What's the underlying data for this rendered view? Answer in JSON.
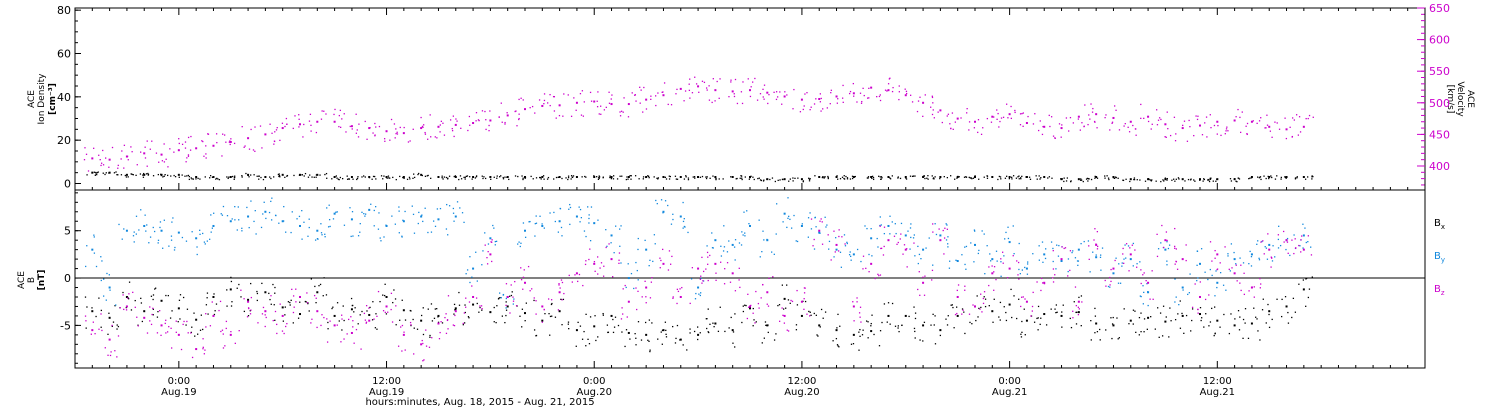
{
  "chart_data": [
    {
      "type": "scatter",
      "panel": "top",
      "ylabel": [
        "ACE",
        "Ion Density",
        "[cm⁻³]"
      ],
      "ylabel_right": [
        "ACE",
        "Velocity",
        "[km/s]"
      ],
      "ylim": [
        -3,
        81
      ],
      "y2lim": [
        362,
        650
      ],
      "yticks": [
        0,
        20,
        40,
        60,
        80
      ],
      "y2ticks": [
        400,
        450,
        500,
        550,
        600,
        650
      ],
      "grid": false,
      "series": [
        {
          "color": "#000000",
          "axis": "left",
          "x": [
            -5,
            -4,
            -3,
            -2,
            -1,
            0,
            1,
            2,
            3,
            4,
            5,
            6,
            7,
            8,
            9,
            10,
            11,
            12,
            13,
            14,
            15,
            16,
            17,
            18,
            19,
            20,
            21,
            22,
            23,
            24,
            25,
            26,
            27,
            28,
            29,
            30,
            31,
            32,
            33,
            34,
            35,
            36,
            37,
            38,
            39,
            40,
            41,
            42,
            43,
            44,
            45,
            46,
            47,
            48,
            49,
            50,
            51,
            52,
            53,
            54,
            55,
            56,
            57,
            58,
            59,
            60,
            61,
            62,
            63,
            64,
            65
          ],
          "values": [
            5,
            5,
            4,
            4,
            4,
            4,
            3,
            3,
            3,
            4,
            3,
            4,
            4,
            4,
            3,
            3,
            3,
            3,
            3,
            4,
            3,
            3,
            3,
            3,
            3,
            3,
            3,
            3,
            3,
            3,
            3,
            3,
            3,
            3,
            3,
            3,
            3,
            3,
            3,
            2,
            2,
            2,
            3,
            3,
            3,
            3,
            3,
            3,
            3,
            3,
            3,
            3,
            3,
            3,
            3,
            3,
            2,
            2,
            3,
            3,
            2,
            2,
            2,
            2,
            2,
            2,
            2,
            3,
            3,
            3,
            3
          ]
        },
        {
          "color": "#cc00cc",
          "axis": "right",
          "x": [
            -5,
            -4,
            -3,
            -2,
            -1,
            0,
            1,
            2,
            3,
            4,
            5,
            6,
            7,
            8,
            9,
            10,
            11,
            12,
            13,
            14,
            15,
            16,
            17,
            18,
            19,
            20,
            21,
            22,
            23,
            24,
            25,
            26,
            27,
            28,
            29,
            30,
            31,
            32,
            33,
            34,
            35,
            36,
            37,
            38,
            39,
            40,
            41,
            42,
            43,
            44,
            45,
            46,
            47,
            48,
            49,
            50,
            51,
            52,
            53,
            54,
            55,
            56,
            57,
            58,
            59,
            60,
            61,
            62,
            63,
            64,
            65
          ],
          "values": [
            412,
            410,
            415,
            420,
            418,
            425,
            428,
            432,
            438,
            444,
            450,
            460,
            466,
            470,
            470,
            463,
            460,
            455,
            452,
            460,
            462,
            465,
            468,
            472,
            480,
            490,
            495,
            496,
            500,
            502,
            498,
            498,
            505,
            512,
            522,
            526,
            520,
            518,
            520,
            516,
            510,
            505,
            506,
            510,
            515,
            524,
            520,
            512,
            500,
            488,
            475,
            470,
            478,
            482,
            468,
            462,
            460,
            478,
            482,
            476,
            470,
            478,
            466,
            460,
            464,
            470,
            472,
            470,
            462,
            458,
            462
          ]
        }
      ]
    },
    {
      "type": "scatter",
      "panel": "bottom",
      "ylabel": [
        "ACE",
        "B",
        "[nT]"
      ],
      "ylim": [
        -9.5,
        9.3
      ],
      "yticks": [
        -5,
        0,
        5
      ],
      "zero_line": true,
      "grid": false,
      "legend": "right",
      "series": [
        {
          "name": "Bx",
          "color": "#000000",
          "x": [
            -5,
            -4,
            -3,
            -2,
            -1,
            0,
            1,
            2,
            3,
            4,
            5,
            6,
            7,
            8,
            9,
            10,
            11,
            12,
            13,
            14,
            15,
            16,
            17,
            18,
            19,
            20,
            21,
            22,
            23,
            24,
            25,
            26,
            27,
            28,
            29,
            30,
            31,
            32,
            33,
            34,
            35,
            36,
            37,
            38,
            39,
            40,
            41,
            42,
            43,
            44,
            45,
            46,
            47,
            48,
            49,
            50,
            51,
            52,
            53,
            54,
            55,
            56,
            57,
            58,
            59,
            60,
            61,
            62,
            63,
            64,
            65
          ],
          "values": [
            -3.5,
            -4.2,
            -2.0,
            -3.5,
            -2.4,
            -3.2,
            -4.4,
            -2.0,
            -1.2,
            -2.3,
            -1.5,
            -3.1,
            -3.8,
            -1.5,
            -4.0,
            -3.3,
            -3.9,
            -2.0,
            -3.4,
            -4.5,
            -4.0,
            -3.2,
            -2.8,
            -3.6,
            -3.0,
            -3.7,
            -4.5,
            -3.5,
            -5.5,
            -5.1,
            -4.0,
            -5.8,
            -6.0,
            -5.5,
            -6.5,
            -6.0,
            -4.8,
            -5.5,
            -3.2,
            -5.0,
            -2.2,
            -4.0,
            -5.0,
            -5.5,
            -6.0,
            -5.6,
            -4.0,
            -4.0,
            -5.0,
            -5.5,
            -4.0,
            -3.0,
            -3.5,
            -2.8,
            -4.5,
            -3.8,
            -4.0,
            -3.6,
            -4.8,
            -5.0,
            -4.5,
            -4.2,
            -4.6,
            -4.0,
            -3.8,
            -4.5,
            -5.0,
            -4.8,
            -3.5,
            -3.0,
            -1.2
          ]
        },
        {
          "name": "By",
          "color": "#1188dd",
          "x": [
            -5,
            -4,
            -3,
            -2,
            -1,
            0,
            1,
            2,
            3,
            4,
            5,
            6,
            7,
            8,
            9,
            10,
            11,
            12,
            13,
            14,
            15,
            16,
            17,
            18,
            19,
            20,
            21,
            22,
            23,
            24,
            25,
            26,
            27,
            28,
            29,
            30,
            31,
            32,
            33,
            34,
            35,
            36,
            37,
            38,
            39,
            40,
            41,
            42,
            43,
            44,
            45,
            46,
            47,
            48,
            49,
            50,
            51,
            52,
            53,
            54,
            55,
            56,
            57,
            58,
            59,
            60,
            61,
            62,
            63,
            64,
            65
          ],
          "values": [
            3.0,
            -1.0,
            5.0,
            5.5,
            5.0,
            4.8,
            4.2,
            5.5,
            6.0,
            6.5,
            7.0,
            6.0,
            5.5,
            5.0,
            6.8,
            6.2,
            7.2,
            5.5,
            6.0,
            6.5,
            6.2,
            6.5,
            1.0,
            4.2,
            -2.0,
            5.0,
            5.5,
            6.0,
            6.5,
            5.8,
            4.5,
            0.0,
            3.0,
            7.0,
            6.5,
            -1.0,
            4.0,
            3.5,
            5.5,
            4.0,
            6.8,
            5.5,
            4.8,
            3.0,
            2.5,
            4.2,
            5.5,
            4.5,
            3.0,
            4.5,
            1.8,
            3.5,
            2.0,
            3.8,
            1.0,
            2.5,
            1.8,
            3.0,
            2.2,
            0.5,
            2.0,
            -1.5,
            3.0,
            -1.0,
            1.5,
            -0.5,
            2.0,
            2.5,
            3.5,
            4.0,
            4.5
          ]
        },
        {
          "name": "Bz",
          "color": "#cc00cc",
          "x": [
            -5,
            -4,
            -3,
            -2,
            -1,
            0,
            1,
            2,
            3,
            4,
            5,
            6,
            7,
            8,
            9,
            10,
            11,
            12,
            13,
            14,
            15,
            16,
            17,
            18,
            19,
            20,
            21,
            22,
            23,
            24,
            25,
            26,
            27,
            28,
            29,
            30,
            31,
            32,
            33,
            34,
            35,
            36,
            37,
            38,
            39,
            40,
            41,
            42,
            43,
            44,
            45,
            46,
            47,
            48,
            49,
            50,
            51,
            52,
            53,
            54,
            55,
            56,
            57,
            58,
            59,
            60,
            61,
            62,
            63,
            64,
            65
          ],
          "values": [
            -5.5,
            -6.5,
            -3.0,
            -4.2,
            -5.0,
            -6.0,
            -7.5,
            -4.0,
            -6.0,
            -2.5,
            -3.5,
            -4.0,
            -2.0,
            -3.5,
            -5.0,
            -5.8,
            -4.5,
            -3.0,
            -6.0,
            -7.0,
            -4.8,
            -3.5,
            -2.0,
            2.5,
            -2.0,
            -0.5,
            -3.0,
            -1.5,
            0.5,
            1.5,
            2.0,
            -2.5,
            -1.0,
            1.5,
            -2.0,
            1.0,
            1.5,
            0.5,
            -3.0,
            -1.5,
            -4.0,
            -2.5,
            5.0,
            3.5,
            -3.0,
            1.5,
            4.0,
            3.0,
            -0.5,
            4.0,
            -2.0,
            -3.0,
            0.5,
            1.0,
            -2.5,
            -0.5,
            2.0,
            -2.5,
            3.5,
            1.0,
            2.5,
            -0.5,
            4.0,
            2.0,
            -2.0,
            2.5,
            0.5,
            -1.0,
            3.0,
            4.0,
            3.0
          ]
        }
      ],
      "legend_labels": [
        {
          "text": "B",
          "sub": "x",
          "color": "#000000"
        },
        {
          "text": "B",
          "sub": "y",
          "color": "#1188dd"
        },
        {
          "text": "B",
          "sub": "z",
          "color": "#cc00cc"
        }
      ]
    }
  ],
  "time_axis": {
    "xlim_hours": [
      -6,
      72
    ],
    "ticks": [
      {
        "hours": 0,
        "time": "0:00",
        "date": "Aug.19"
      },
      {
        "hours": 12,
        "time": "12:00",
        "date": "Aug.19"
      },
      {
        "hours": 24,
        "time": "0:00",
        "date": "Aug.20"
      },
      {
        "hours": 36,
        "time": "12:00",
        "date": "Aug.20"
      },
      {
        "hours": 48,
        "time": "0:00",
        "date": "Aug.21"
      },
      {
        "hours": 60,
        "time": "12:00",
        "date": "Aug.21"
      }
    ],
    "xlabel": "hours:minutes, Aug. 18, 2015 - Aug. 21, 2015"
  }
}
